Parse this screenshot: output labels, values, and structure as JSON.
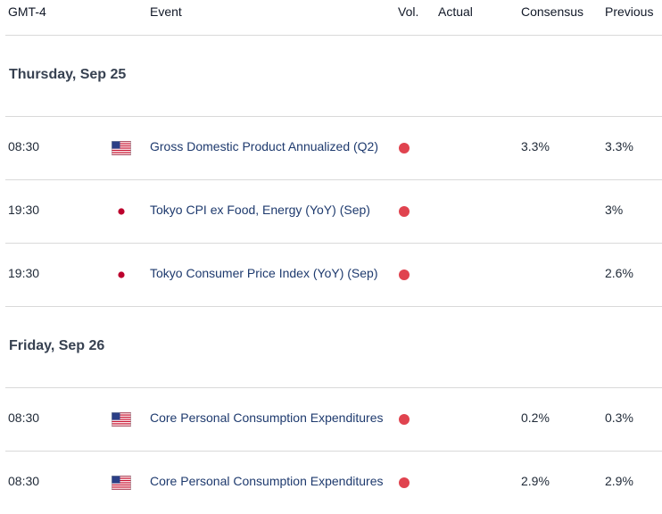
{
  "header": {
    "timezone": "GMT-4",
    "event": "Event",
    "vol": "Vol.",
    "actual": "Actual",
    "consensus": "Consensus",
    "previous": "Previous"
  },
  "days": [
    {
      "label": "Thursday, Sep 25",
      "events": [
        {
          "time": "08:30",
          "country": "us-flag-icon",
          "event": "Gross Domestic Product Annualized (Q2)",
          "volatility": "high",
          "actual": "",
          "consensus": "3.3%",
          "previous": "3.3%"
        },
        {
          "time": "19:30",
          "country": "jp-flag-icon",
          "event": "Tokyo CPI ex Food, Energy (YoY) (Sep)",
          "volatility": "high",
          "actual": "",
          "consensus": "",
          "previous": "3%"
        },
        {
          "time": "19:30",
          "country": "jp-flag-icon",
          "event": "Tokyo Consumer Price Index (YoY) (Sep)",
          "volatility": "high",
          "actual": "",
          "consensus": "",
          "previous": "2.6%"
        }
      ]
    },
    {
      "label": "Friday, Sep 26",
      "events": [
        {
          "time": "08:30",
          "country": "us-flag-icon",
          "event": "Core Personal Consumption Expenditures",
          "volatility": "high",
          "actual": "",
          "consensus": "0.2%",
          "previous": "0.3%"
        },
        {
          "time": "08:30",
          "country": "us-flag-icon",
          "event": "Core Personal Consumption Expenditures",
          "volatility": "high",
          "actual": "",
          "consensus": "2.9%",
          "previous": "2.9%"
        }
      ]
    }
  ],
  "colors": {
    "volatility_high": "#e0434f",
    "event_text": "#1e3a6e",
    "divider": "#d9d9d9"
  }
}
